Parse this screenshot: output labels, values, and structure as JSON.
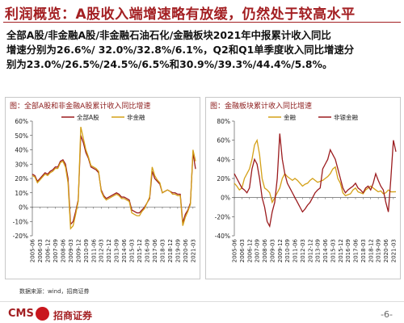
{
  "header": {
    "title": "利润概览：A股收入端增速略有放缓，仍然处于较高水平"
  },
  "body_lines": [
    "全部A股/非金融A股/非金融石油石化/金融板块2021年中报累计收入同比",
    "增速分别为26.6%/ 32.0%/32.8%/6.1%，Q2和Q1单季度收入同比增速分",
    "别为23.0%/26.5%/24.5%/6.5%和30.9%/39.3%/44.4%/5.8%。"
  ],
  "chart_data": [
    {
      "type": "line",
      "title": "图：全部A股和非金融A股累计收入同比增速",
      "categories": [
        "2005-06",
        null,
        null,
        "2006-03",
        null,
        null,
        "2006-12",
        null,
        null,
        "2007-09",
        null,
        null,
        "2008-06",
        null,
        null,
        "2009-03",
        null,
        null,
        "2009-12",
        null,
        null,
        "2010-09",
        null,
        null,
        "2011-06",
        null,
        null,
        "2012-03",
        null,
        null,
        "2012-12",
        null,
        null,
        "2013-09",
        null,
        null,
        "2014-06",
        null,
        null,
        "2015-03",
        null,
        null,
        "2015-12",
        null,
        null,
        "2016-09",
        null,
        null,
        "2017-06",
        null,
        null,
        "2018-03",
        null,
        null,
        "2018-12",
        null,
        null,
        "2019-09",
        null,
        null,
        "2020-06",
        null,
        null,
        "2021-03",
        null
      ],
      "series": [
        {
          "name": "全部A股",
          "color": "#9b1b1e",
          "values": [
            23,
            22,
            18,
            20,
            22,
            24,
            23,
            25,
            26,
            28,
            28,
            32,
            33,
            30,
            20,
            -12,
            -10,
            -3,
            5,
            50,
            45,
            38,
            34,
            28,
            27,
            26,
            24,
            12,
            8,
            6,
            7,
            8,
            9,
            10,
            9,
            7,
            7,
            6,
            5,
            -2,
            -3,
            -4,
            -4,
            -2,
            0,
            3,
            6,
            25,
            20,
            18,
            16,
            10,
            11,
            12,
            11,
            10,
            10,
            9,
            9,
            -11,
            -5,
            -2,
            3,
            38,
            26.6
          ]
        },
        {
          "name": "非金融",
          "color": "#d4a017",
          "values": [
            22,
            21,
            17,
            19,
            21,
            23,
            22,
            24,
            25,
            27,
            27,
            31,
            32,
            28,
            17,
            -15,
            -13,
            -5,
            4,
            56,
            48,
            40,
            35,
            29,
            28,
            27,
            25,
            11,
            7,
            5,
            6,
            7,
            8,
            9,
            8,
            6,
            6,
            5,
            4,
            -4,
            -5,
            -6,
            -6,
            -3,
            -1,
            3,
            7,
            28,
            22,
            19,
            17,
            10,
            11,
            12,
            11,
            9,
            9,
            8,
            8,
            -13,
            -7,
            -3,
            2,
            40,
            32
          ]
        }
      ],
      "ylim": [
        -20,
        60
      ],
      "yticks": [
        {
          "value": 60,
          "label": "60%"
        },
        {
          "value": 50,
          "label": "50%"
        },
        {
          "value": 40,
          "label": "40%"
        },
        {
          "value": 30,
          "label": "30%"
        },
        {
          "value": 20,
          "label": "20%"
        },
        {
          "value": 10,
          "label": "10%"
        },
        {
          "value": 0,
          "label": "0%"
        },
        {
          "value": -10,
          "label": "-10%"
        },
        {
          "value": -20,
          "label": "-20%"
        }
      ],
      "legend": "top"
    },
    {
      "type": "line",
      "title": "图：金融板块累计收入同比增速",
      "categories": [
        "2005-06",
        null,
        null,
        "2006-03",
        null,
        null,
        "2006-12",
        null,
        null,
        "2007-09",
        null,
        null,
        "2008-06",
        null,
        null,
        "2009-03",
        null,
        null,
        "2009-12",
        null,
        null,
        "2010-09",
        null,
        null,
        "2011-06",
        null,
        null,
        "2012-03",
        null,
        null,
        "2012-12",
        null,
        null,
        "2013-09",
        null,
        null,
        "2014-06",
        null,
        null,
        "2015-03",
        null,
        null,
        "2015-12",
        null,
        null,
        "2016-09",
        null,
        null,
        "2017-06",
        null,
        null,
        "2018-03",
        null,
        null,
        "2018-12",
        null,
        null,
        "2019-09",
        null,
        null,
        "2020-06",
        null,
        null,
        "2021-03",
        null
      ],
      "series": [
        {
          "name": "金融",
          "color": "#d4a017",
          "values": [
            15,
            12,
            8,
            10,
            20,
            25,
            30,
            40,
            55,
            60,
            45,
            20,
            10,
            8,
            5,
            -5,
            0,
            5,
            10,
            20,
            25,
            22,
            20,
            18,
            20,
            18,
            15,
            12,
            14,
            15,
            18,
            20,
            18,
            16,
            17,
            18,
            20,
            22,
            25,
            30,
            32,
            20,
            15,
            5,
            2,
            3,
            4,
            8,
            10,
            6,
            5,
            4,
            8,
            10,
            12,
            10,
            8,
            6,
            7,
            4,
            5,
            8,
            6,
            6,
            6.1
          ]
        },
        {
          "name": "非银金融",
          "color": "#9b1b1e",
          "values": [
            25,
            20,
            15,
            10,
            8,
            5,
            10,
            30,
            40,
            35,
            20,
            0,
            -10,
            -25,
            -30,
            -15,
            -5,
            20,
            67,
            40,
            25,
            15,
            10,
            5,
            0,
            -5,
            -10,
            -15,
            -12,
            -8,
            -5,
            0,
            5,
            8,
            10,
            30,
            35,
            40,
            50,
            45,
            40,
            30,
            20,
            10,
            5,
            8,
            10,
            12,
            15,
            10,
            8,
            5,
            10,
            12,
            8,
            15,
            25,
            18,
            12,
            8,
            -5,
            -15,
            20,
            60,
            48
          ]
        }
      ],
      "ylim": [
        -40,
        80
      ],
      "yticks": [
        {
          "value": 80,
          "label": "80%"
        },
        {
          "value": 60,
          "label": "60%"
        },
        {
          "value": 40,
          "label": "40%"
        },
        {
          "value": 20,
          "label": "20%"
        },
        {
          "value": 0,
          "label": "0%"
        },
        {
          "value": -20,
          "label": "-20%"
        },
        {
          "value": -40,
          "label": "-40%"
        }
      ],
      "legend": "top"
    }
  ],
  "source": "数据来源：wind，招商证券",
  "footer": {
    "brand": "CMS",
    "brand_cn": "招商证券",
    "page": "-6-"
  }
}
